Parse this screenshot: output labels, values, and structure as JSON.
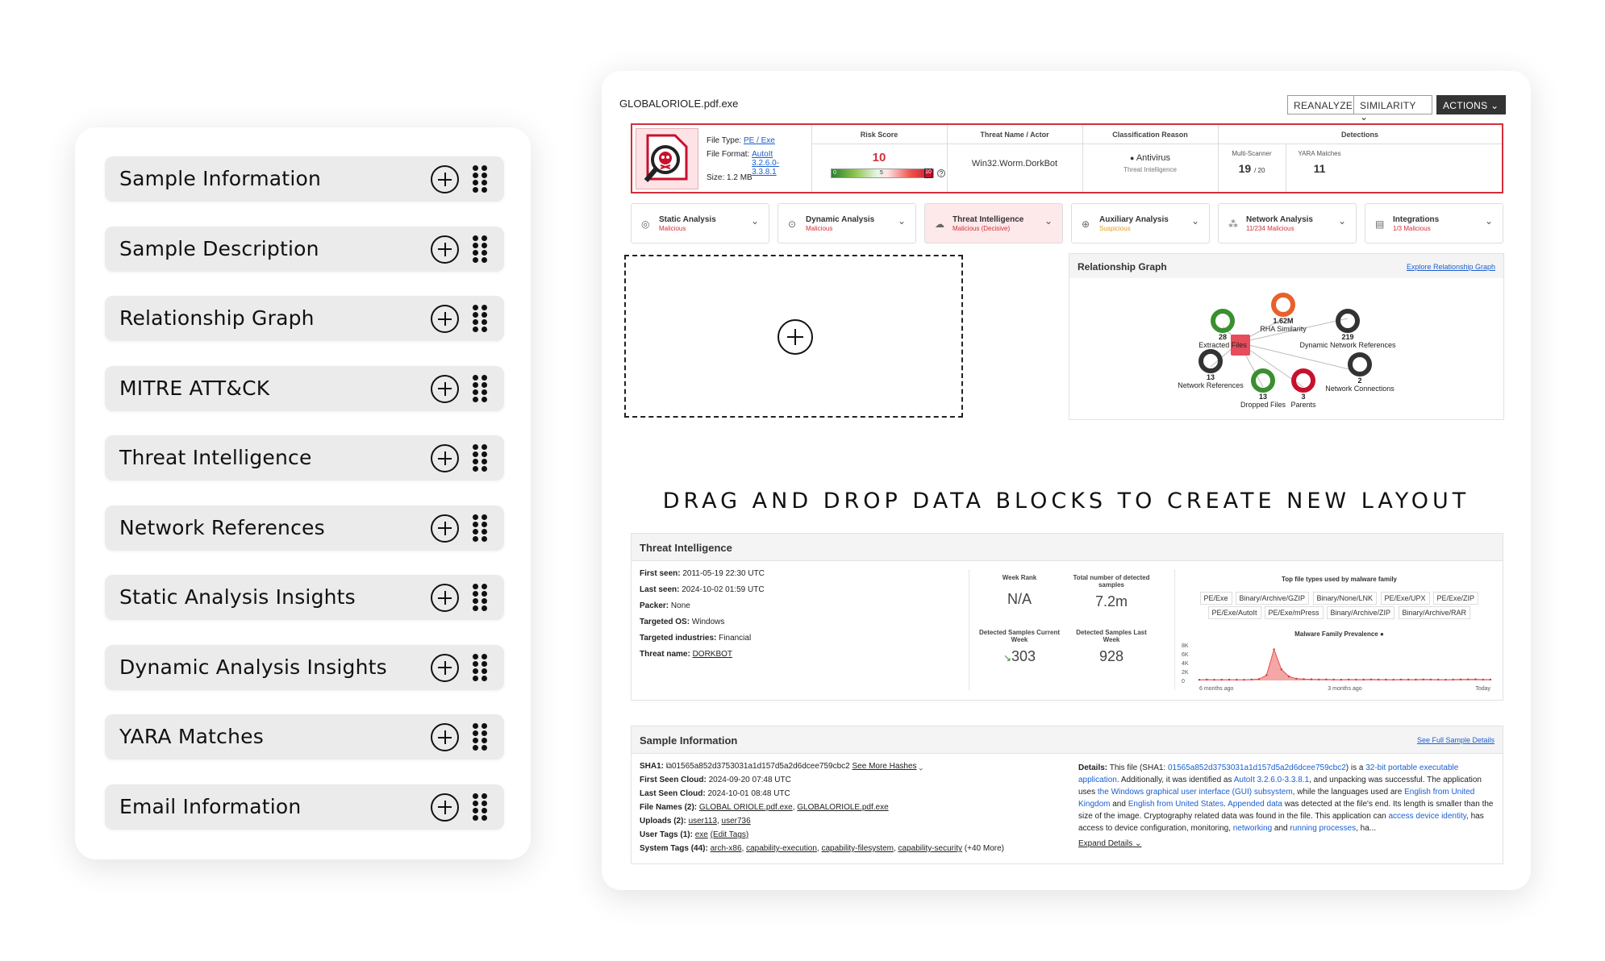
{
  "palette": {
    "items": [
      {
        "label": "Sample Information"
      },
      {
        "label": "Sample Description"
      },
      {
        "label": "Relationship Graph"
      },
      {
        "label": "MITRE ATT&CK"
      },
      {
        "label": "Threat Intelligence"
      },
      {
        "label": "Network References"
      },
      {
        "label": "Static Analysis Insights"
      },
      {
        "label": "Dynamic Analysis Insights"
      },
      {
        "label": "YARA Matches"
      },
      {
        "label": "Email Information"
      }
    ]
  },
  "header": {
    "filename": "GLOBALORIOLE.pdf.exe",
    "buttons": {
      "reanalyze": "REANALYZE",
      "similarity": "SIMILARITY",
      "actions": "ACTIONS"
    }
  },
  "summary": {
    "file_type_label": "File Type:",
    "file_type": "PE / Exe",
    "file_format_label": "File Format:",
    "file_format": "AutoIt 3.2.6.0-3.3.8.1",
    "size_label": "Size:",
    "size": "1.2 MB",
    "risk_score_header": "Risk Score",
    "risk_score": "10",
    "risk_bar": {
      "min": "0",
      "mid": "5",
      "max": "10"
    },
    "threat_header": "Threat Name / Actor",
    "threat_name": "Win32.Worm.DorkBot",
    "classification_header": "Classification Reason",
    "classification": "Antivirus",
    "classification_sub": "Threat Intelligence",
    "detections_header": "Detections",
    "multi_scanner_label": "Multi-Scanner",
    "multi_scanner": "19",
    "multi_scanner_total": "/ 20",
    "yara_label": "YARA Matches",
    "yara": "11",
    "accent_color": "#d32f3a"
  },
  "analysis_cards": [
    {
      "title": "Static Analysis",
      "status": "Malicious",
      "color": "#d32f3a"
    },
    {
      "title": "Dynamic Analysis",
      "status": "Malicious",
      "color": "#d32f3a"
    },
    {
      "title": "Threat Intelligence",
      "status": "Malicious (Decisive)",
      "color": "#d32f3a"
    },
    {
      "title": "Auxiliary Analysis",
      "status": "Suspicious",
      "color": "#e69a1c"
    },
    {
      "title": "Network Analysis",
      "status": "11/234 Malicious",
      "color": "#d32f3a"
    },
    {
      "title": "Integrations",
      "status": "1/3 Malicious",
      "color": "#d32f3a"
    }
  ],
  "relationship_graph": {
    "title": "Relationship Graph",
    "explore_link": "Explore Relationship Graph",
    "nodes": [
      {
        "value": "28",
        "label": "Extracted Files",
        "color": "#3a8f2f"
      },
      {
        "value": "1.62M",
        "label": "RHA Similarity",
        "color": "#e9602a"
      },
      {
        "value": "219",
        "label": "Dynamic Network References",
        "color": "#333333"
      },
      {
        "value": "13",
        "label": "Network References",
        "color": "#333333"
      },
      {
        "value": "2",
        "label": "Network Connections",
        "color": "#333333"
      },
      {
        "value": "13",
        "label": "Dropped Files",
        "color": "#3a8f2f"
      },
      {
        "value": "3",
        "label": "Parents",
        "color": "#c8102e"
      }
    ]
  },
  "banner": "DRAG AND DROP DATA BLOCKS TO CREATE NEW LAYOUT",
  "threat_intel": {
    "title": "Threat Intelligence",
    "first_seen_label": "First seen:",
    "first_seen": "2011-05-19 22:30 UTC",
    "last_seen_label": "Last seen:",
    "last_seen": "2024-10-02 01:59 UTC",
    "packer_label": "Packer:",
    "packer": "None",
    "os_label": "Targeted OS:",
    "os": "Windows",
    "industries_label": "Targeted industries:",
    "industries": "Financial",
    "threat_name_label": "Threat name:",
    "threat_name": "DORKBOT",
    "week_rank_label": "Week Rank",
    "week_rank": "N/A",
    "total_label": "Total number of detected samples",
    "total": "7.2m",
    "current_week_label": "Detected Samples Current Week",
    "current_week": "303",
    "last_week_label": "Detected Samples Last Week",
    "last_week": "928",
    "file_types_title": "Top file types used by malware family",
    "file_types": [
      "PE/Exe",
      "Binary/Archive/GZIP",
      "Binary/None/LNK",
      "PE/Exe/UPX",
      "PE/Exe/ZIP",
      "PE/Exe/AutoIt",
      "PE/Exe/mPress",
      "Binary/Archive/ZIP",
      "Binary/Archive/RAR"
    ],
    "prevalence_title": "Malware Family Prevalence",
    "chart_data": {
      "type": "area",
      "title": "Malware Family Prevalence",
      "y_ticks": [
        "8K",
        "6K",
        "4K",
        "2K",
        "0"
      ],
      "x_ticks": [
        "6 months ago",
        "3 months ago",
        "Today"
      ],
      "ylim": [
        0,
        8000
      ],
      "values": [
        150,
        180,
        150,
        160,
        170,
        160,
        150,
        200,
        300,
        1200,
        7000,
        2500,
        900,
        400,
        300,
        250,
        200,
        220,
        180,
        170,
        200,
        190,
        180,
        210,
        190,
        180,
        170,
        200,
        180,
        190,
        210,
        200,
        180,
        170,
        190,
        210,
        230,
        260,
        180,
        200
      ],
      "color": "#f08a8a"
    }
  },
  "sample_info": {
    "title": "Sample Information",
    "full_link": "See Full Sample Details",
    "sha1_label": "SHA1:",
    "sha1": "01565a852d3753031a1d157d5a2d6dcee759cbc2",
    "more_hashes": "See More Hashes",
    "first_cloud_label": "First Seen Cloud:",
    "first_cloud": "2024-09-20 07:48 UTC",
    "last_cloud_label": "Last Seen Cloud:",
    "last_cloud": "2024-10-01 08:48 UTC",
    "file_names_label": "File Names (2):",
    "file_name_1": "GLOBAL ORIOLE.pdf.exe",
    "file_name_2": "GLOBALORIOLE.pdf.exe",
    "uploads_label": "Uploads (2):",
    "upload_1": "user113",
    "upload_2": "user736",
    "user_tags_label": "User Tags (1):",
    "user_tag": "exe",
    "edit_tags": "(Edit Tags)",
    "system_tags_label": "System Tags (44):",
    "system_tags": [
      "arch-x86",
      "capability-execution",
      "capability-filesystem",
      "capability-security"
    ],
    "more_tags": "(+40 More)",
    "details_label": "Details:",
    "details": [
      {
        "t": "This file (SHA1: ",
        "l": false
      },
      {
        "t": "01565a852d3753031a1d157d5a2d6dcee759cbc2",
        "l": true
      },
      {
        "t": ") is a ",
        "l": false
      },
      {
        "t": "32-bit portable executable application",
        "l": true
      },
      {
        "t": ". Additionally, it was identified as ",
        "l": false
      },
      {
        "t": "AutoIt 3.2.6.0-3.3.8.1",
        "l": true
      },
      {
        "t": ", and unpacking was successful. The application uses ",
        "l": false
      },
      {
        "t": "the Windows graphical user interface (GUI) subsystem",
        "l": true
      },
      {
        "t": ", while the languages used are ",
        "l": false
      },
      {
        "t": "English from United Kingdom",
        "l": true
      },
      {
        "t": " and ",
        "l": false
      },
      {
        "t": "English from United States",
        "l": true
      },
      {
        "t": ". ",
        "l": false
      },
      {
        "t": "Appended data",
        "l": true
      },
      {
        "t": " was detected at the file's end. Its length is smaller than the size of the image. Cryptography related data was found in the file. This application can ",
        "l": false
      },
      {
        "t": "access device identity",
        "l": true
      },
      {
        "t": ", has access to device configuration, monitoring, ",
        "l": false
      },
      {
        "t": "networking",
        "l": true
      },
      {
        "t": " and ",
        "l": false
      },
      {
        "t": "running processes",
        "l": true
      },
      {
        "t": ", ha...",
        "l": false
      }
    ],
    "expand": "Expand Details"
  }
}
